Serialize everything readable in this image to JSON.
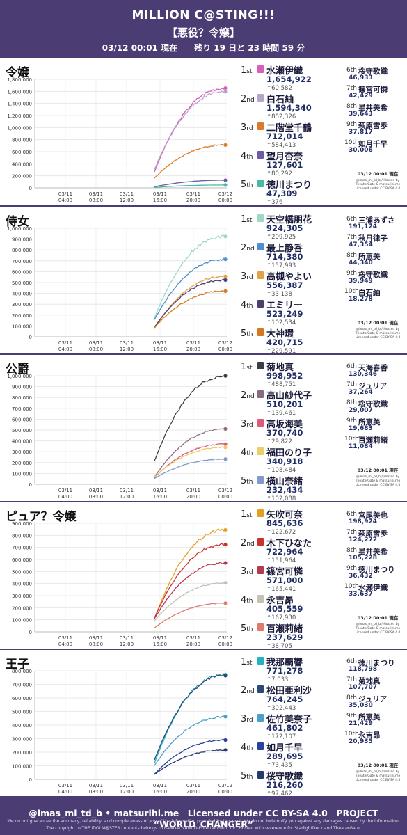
{
  "header": {
    "title": "MILLION C@STING!!!",
    "subtitle": "【悪役？令嬢】",
    "status": "03/12 00:01 現在　　残り 19 日と 23 時間 59 分"
  },
  "footer": {
    "credits": "@imas_ml_td_b • matsurihi.me　Licensed under CC BY-SA 4.0　PROJECT “WORLD_CHANGER”",
    "disclaimer1": "We do not guarantee the accuracy, reliability, and completeness of any of the information provided by this post. We do not indemnify you against any damages caused by the information.",
    "disclaimer2": "The copyright to THE IDOLM@STER contents belongs to BANDAI NAMCO Entertainment Inc. Hosted with reverence for StarlightDeck and TheaterGate."
  },
  "stamp": {
    "time": "03/12 00:01 現在",
    "line1": "@imas_ml_td_b / Hosted by",
    "line2": "TheaterGate & matsurihi.me",
    "line3": "Licensed under CC BY-SA 4.0"
  },
  "ord_suffix": "st",
  "chart_data": [
    {
      "type": "line",
      "title": "令嬢",
      "x_ticks": [
        "03/11\n04:00",
        "03/11\n08:00",
        "03/11\n12:00",
        "03/11\n16:00",
        "03/11\n20:00",
        "03/12\n00:00"
      ],
      "x_range": [
        "03/11 00:00",
        "03/12 00:00"
      ],
      "ylim": [
        0,
        1800000
      ],
      "y_ticks": [
        "0",
        "200,000",
        "400,000",
        "600,000",
        "800,000",
        "1,000,000",
        "1,200,000",
        "1,400,000",
        "1,600,000",
        "1,800,000"
      ],
      "grid": true,
      "series": [
        {
          "rank": "1",
          "name": "水瀬伊織",
          "score": "1,654,922",
          "delta": "↑60,582",
          "value": 1654922,
          "color": "#d65fb8"
        },
        {
          "rank": "2",
          "name": "白石紬",
          "score": "1,594,340",
          "delta": "↑882,326",
          "value": 1594340,
          "color": "#b7a6cc"
        },
        {
          "rank": "3",
          "name": "二階堂千鶴",
          "score": "712,014",
          "delta": "↑584,413",
          "value": 712014,
          "color": "#d97b2b"
        },
        {
          "rank": "4",
          "name": "望月杏奈",
          "score": "127,601",
          "delta": "↑80,292",
          "value": 127601,
          "color": "#6f5aa8"
        },
        {
          "rank": "5",
          "name": "徳川まつり",
          "score": "47,309",
          "delta": "↑376",
          "value": 47309,
          "color": "#49b9a3"
        }
      ],
      "others": [
        {
          "rank": "6th",
          "name": "桜守歌織",
          "score": "46,933"
        },
        {
          "rank": "7th",
          "name": "篠宮可憐",
          "score": "42,429"
        },
        {
          "rank": "8th",
          "name": "星井美希",
          "score": "39,643"
        },
        {
          "rank": "9th",
          "name": "萩原雪歩",
          "score": "37,817"
        },
        {
          "rank": "10th",
          "name": "如月千早",
          "score": "30,006"
        }
      ]
    },
    {
      "type": "line",
      "title": "侍女",
      "x_ticks": [
        "03/11\n04:00",
        "03/11\n08:00",
        "03/11\n12:00",
        "03/11\n16:00",
        "03/11\n20:00",
        "03/12\n00:00"
      ],
      "x_range": [
        "03/11 00:00",
        "03/12 00:00"
      ],
      "ylim": [
        0,
        1000000
      ],
      "y_ticks": [
        "0",
        "100,000",
        "200,000",
        "300,000",
        "400,000",
        "500,000",
        "600,000",
        "700,000",
        "800,000",
        "900,000",
        "1,000,000"
      ],
      "grid": true,
      "series": [
        {
          "rank": "1",
          "name": "天空橋朋花",
          "score": "924,305",
          "delta": "↑209,925",
          "value": 924305,
          "color": "#9fd8c8"
        },
        {
          "rank": "2",
          "name": "最上静香",
          "score": "714,380",
          "delta": "↑157,993",
          "value": 714380,
          "color": "#4f8fd0"
        },
        {
          "rank": "3",
          "name": "高槻やよい",
          "score": "556,387",
          "delta": "↑33,138",
          "value": 556387,
          "color": "#e3a24a"
        },
        {
          "rank": "4",
          "name": "エミリー",
          "score": "523,249",
          "delta": "↑102,534",
          "value": 523249,
          "color": "#4a3f6e"
        },
        {
          "rank": "5",
          "name": "大神環",
          "score": "420,715",
          "delta": "↑229,591",
          "value": 420715,
          "color": "#d6781f"
        }
      ],
      "others": [
        {
          "rank": "6th",
          "name": "三浦あずさ",
          "score": "191,124"
        },
        {
          "rank": "7th",
          "name": "秋月律子",
          "score": "47,354"
        },
        {
          "rank": "8th",
          "name": "所恵美",
          "score": "44,340"
        },
        {
          "rank": "9th",
          "name": "桜守歌織",
          "score": "39,949"
        },
        {
          "rank": "10th",
          "name": "白石紬",
          "score": "18,278"
        }
      ]
    },
    {
      "type": "line",
      "title": "公爵",
      "x_ticks": [
        "03/11\n04:00",
        "03/11\n08:00",
        "03/11\n12:00",
        "03/11\n16:00",
        "03/11\n20:00",
        "03/12\n00:00"
      ],
      "x_range": [
        "03/11 00:00",
        "03/12 00:00"
      ],
      "ylim": [
        0,
        1000000
      ],
      "y_ticks": [
        "0",
        "100,000",
        "200,000",
        "300,000",
        "400,000",
        "500,000",
        "600,000",
        "700,000",
        "800,000",
        "900,000",
        "1,000,000"
      ],
      "grid": true,
      "series": [
        {
          "rank": "1",
          "name": "菊地真",
          "score": "998,952",
          "delta": "↑488,751",
          "value": 998952,
          "color": "#3c3c46"
        },
        {
          "rank": "2",
          "name": "高山紗代子",
          "score": "510,201",
          "delta": "↑139,461",
          "value": 510201,
          "color": "#8a6a82"
        },
        {
          "rank": "3",
          "name": "高坂海美",
          "score": "370,740",
          "delta": "↑29,822",
          "value": 370740,
          "color": "#dd5a7a"
        },
        {
          "rank": "4",
          "name": "福田のり子",
          "score": "340,918",
          "delta": "↑108,484",
          "value": 340918,
          "color": "#e8cf6a"
        },
        {
          "rank": "5",
          "name": "横山奈緒",
          "score": "232,434",
          "delta": "↑102,088",
          "value": 232434,
          "color": "#7f9acb"
        }
      ],
      "others": [
        {
          "rank": "6th",
          "name": "天海春香",
          "score": "130,346"
        },
        {
          "rank": "7th",
          "name": "ジュリア",
          "score": "37,264"
        },
        {
          "rank": "8th",
          "name": "桜守歌織",
          "score": "29,007"
        },
        {
          "rank": "9th",
          "name": "所恵美",
          "score": "19,683"
        },
        {
          "rank": "10th",
          "name": "百瀬莉緒",
          "score": "11,084"
        }
      ]
    },
    {
      "type": "line",
      "title": "ピュア？令嬢",
      "x_ticks": [
        "03/11\n04:00",
        "03/11\n08:00",
        "03/11\n12:00",
        "03/11\n16:00",
        "03/11\n20:00",
        "03/12\n00:00"
      ],
      "x_range": [
        "03/11 00:00",
        "03/12 00:00"
      ],
      "ylim": [
        0,
        900000
      ],
      "y_ticks": [
        "0",
        "100,000",
        "200,000",
        "300,000",
        "400,000",
        "500,000",
        "600,000",
        "700,000",
        "800,000",
        "900,000"
      ],
      "grid": true,
      "series": [
        {
          "rank": "1",
          "name": "矢吹可奈",
          "score": "845,636",
          "delta": "↑122,672",
          "value": 845636,
          "color": "#e4a024"
        },
        {
          "rank": "2",
          "name": "木下ひなた",
          "score": "722,964",
          "delta": "↑151,964",
          "value": 722964,
          "color": "#c8322f"
        },
        {
          "rank": "3",
          "name": "篠宮可憐",
          "score": "571,000",
          "delta": "↑165,441",
          "value": 571000,
          "color": "#b53a4e"
        },
        {
          "rank": "4",
          "name": "永吉昴",
          "score": "405,559",
          "delta": "↑167,930",
          "value": 405559,
          "color": "#c5c1b5"
        },
        {
          "rank": "5",
          "name": "百瀬莉緒",
          "score": "237,629",
          "delta": "↑38,705",
          "value": 237629,
          "color": "#de7b6e"
        }
      ],
      "others": [
        {
          "rank": "6th",
          "name": "宮尾美也",
          "score": "198,924"
        },
        {
          "rank": "7th",
          "name": "萩原雪歩",
          "score": "124,272"
        },
        {
          "rank": "8th",
          "name": "星井美希",
          "score": "105,228"
        },
        {
          "rank": "9th",
          "name": "徳川まつり",
          "score": "36,432"
        },
        {
          "rank": "10th",
          "name": "水瀬伊織",
          "score": "33,637"
        }
      ]
    },
    {
      "type": "line",
      "title": "王子",
      "x_ticks": [
        "03/11\n04:00",
        "03/11\n08:00",
        "03/11\n12:00",
        "03/11\n16:00",
        "03/11\n20:00",
        "03/12\n00:00"
      ],
      "x_range": [
        "03/11 00:00",
        "03/12 00:00"
      ],
      "ylim": [
        0,
        800000
      ],
      "y_ticks": [
        "0",
        "100,000",
        "200,000",
        "300,000",
        "400,000",
        "500,000",
        "600,000",
        "700,000",
        "800,000"
      ],
      "grid": true,
      "series": [
        {
          "rank": "1",
          "name": "我那覇響",
          "score": "771,278",
          "delta": "↑7,033",
          "value": 771278,
          "color": "#22b3c1"
        },
        {
          "rank": "2",
          "name": "松田亜利沙",
          "score": "764,245",
          "delta": "↑302,443",
          "value": 764245,
          "color": "#2c4a78"
        },
        {
          "rank": "3",
          "name": "佐竹美奈子",
          "score": "461,802",
          "delta": "↑172,107",
          "value": 461802,
          "color": "#4aa0c8"
        },
        {
          "rank": "4",
          "name": "如月千早",
          "score": "289,695",
          "delta": "↑73,435",
          "value": 289695,
          "color": "#2a3fa0"
        },
        {
          "rank": "5",
          "name": "桜守歌織",
          "score": "216,260",
          "delta": "↑97,462",
          "value": 216260,
          "color": "#243a6a"
        }
      ],
      "others": [
        {
          "rank": "6th",
          "name": "徳川まつり",
          "score": "118,798"
        },
        {
          "rank": "7th",
          "name": "菊地真",
          "score": "107,707"
        },
        {
          "rank": "8th",
          "name": "ジュリア",
          "score": "35,030"
        },
        {
          "rank": "9th",
          "name": "所恵美",
          "score": "21,429"
        },
        {
          "rank": "10th",
          "name": "永吉昴",
          "score": "20,935"
        }
      ]
    }
  ]
}
